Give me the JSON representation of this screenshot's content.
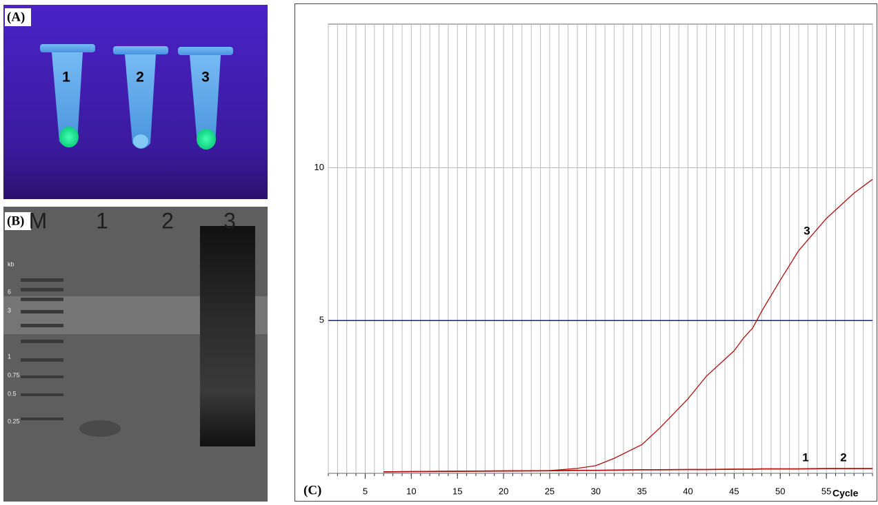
{
  "panel_a": {
    "label": "(A)",
    "tubes": [
      "1",
      "2",
      "3"
    ]
  },
  "panel_b": {
    "label": "(B)",
    "lanes": [
      "M",
      "1",
      "2",
      "3"
    ],
    "unit": "kb",
    "ladder": [
      "6",
      "3",
      "1",
      "0.75",
      "0.5",
      "0.25"
    ]
  },
  "chart_data": {
    "type": "line",
    "panel_label": "(C)",
    "x_label": "Cycle",
    "x": [
      7,
      10,
      15,
      20,
      25,
      28,
      30,
      32,
      35,
      37,
      40,
      42,
      45,
      46,
      47,
      48,
      50,
      52,
      55,
      58,
      60
    ],
    "series": [
      {
        "name": "1",
        "color": "#b01010",
        "values": [
          0.05,
          0.06,
          0.07,
          0.08,
          0.09,
          0.1,
          0.1,
          0.11,
          0.12,
          0.12,
          0.13,
          0.13,
          0.14,
          0.14,
          0.14,
          0.15,
          0.15,
          0.15,
          0.16,
          0.16,
          0.16
        ]
      },
      {
        "name": "2",
        "color": "#b01010",
        "values": [
          0.04,
          0.05,
          0.06,
          0.07,
          0.08,
          0.09,
          0.09,
          0.1,
          0.11,
          0.11,
          0.12,
          0.12,
          0.13,
          0.13,
          0.13,
          0.14,
          0.14,
          0.14,
          0.15,
          0.15,
          0.15
        ]
      },
      {
        "name": "3",
        "color": "#b01010",
        "values": [
          0.05,
          0.06,
          0.07,
          0.08,
          0.09,
          0.16,
          0.25,
          0.49,
          0.94,
          1.5,
          2.44,
          3.18,
          4.01,
          4.42,
          4.75,
          5.31,
          6.32,
          7.29,
          8.34,
          9.17,
          9.62
        ]
      }
    ],
    "xlim": [
      1,
      60
    ],
    "ylim": [
      0,
      14.7
    ],
    "xticks": [
      5,
      10,
      15,
      20,
      25,
      30,
      35,
      40,
      45,
      50,
      55
    ],
    "yticks": [
      5,
      10
    ],
    "xgrid_step": 1,
    "threshold": 5,
    "threshold_color": "#1a1aa8",
    "grid": true
  }
}
